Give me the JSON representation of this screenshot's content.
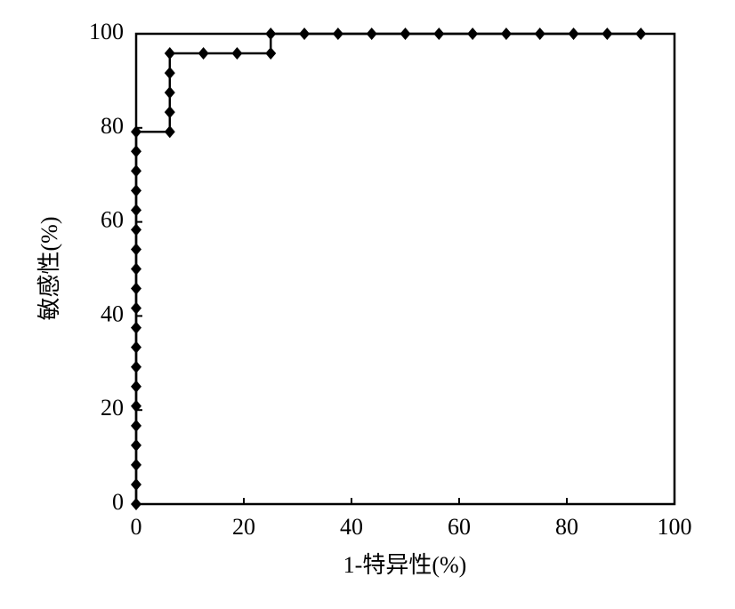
{
  "chart_data": {
    "type": "line",
    "xlabel": "1-特异性(%)",
    "ylabel": "敏感性(%)",
    "x": [
      0,
      0,
      0,
      0,
      0,
      0,
      0,
      0,
      0,
      0,
      0,
      0,
      0,
      0,
      0,
      0,
      0,
      0,
      0,
      0,
      6.25,
      6.25,
      6.25,
      6.25,
      6.25,
      12.5,
      18.75,
      25,
      25,
      31.25,
      37.5,
      43.75,
      50,
      56.25,
      62.5,
      68.75,
      75,
      81.25,
      87.5,
      93.75
    ],
    "series": [
      {
        "color": "#000000",
        "values": [
          0,
          4.17,
          8.33,
          12.5,
          16.67,
          20.83,
          25,
          29.17,
          33.33,
          37.5,
          41.67,
          45.83,
          50,
          54.17,
          58.33,
          62.5,
          66.67,
          70.83,
          75,
          79.17,
          79.17,
          83.33,
          87.5,
          91.67,
          95.83,
          95.83,
          95.83,
          95.83,
          100,
          100,
          100,
          100,
          100,
          100,
          100,
          100,
          100,
          100,
          100,
          100
        ]
      }
    ],
    "xlim": [
      0,
      100
    ],
    "ylim": [
      0,
      100
    ],
    "xticks": [
      0,
      20,
      40,
      60,
      80,
      100
    ],
    "yticks": [
      0,
      20,
      40,
      60,
      80,
      100
    ]
  }
}
